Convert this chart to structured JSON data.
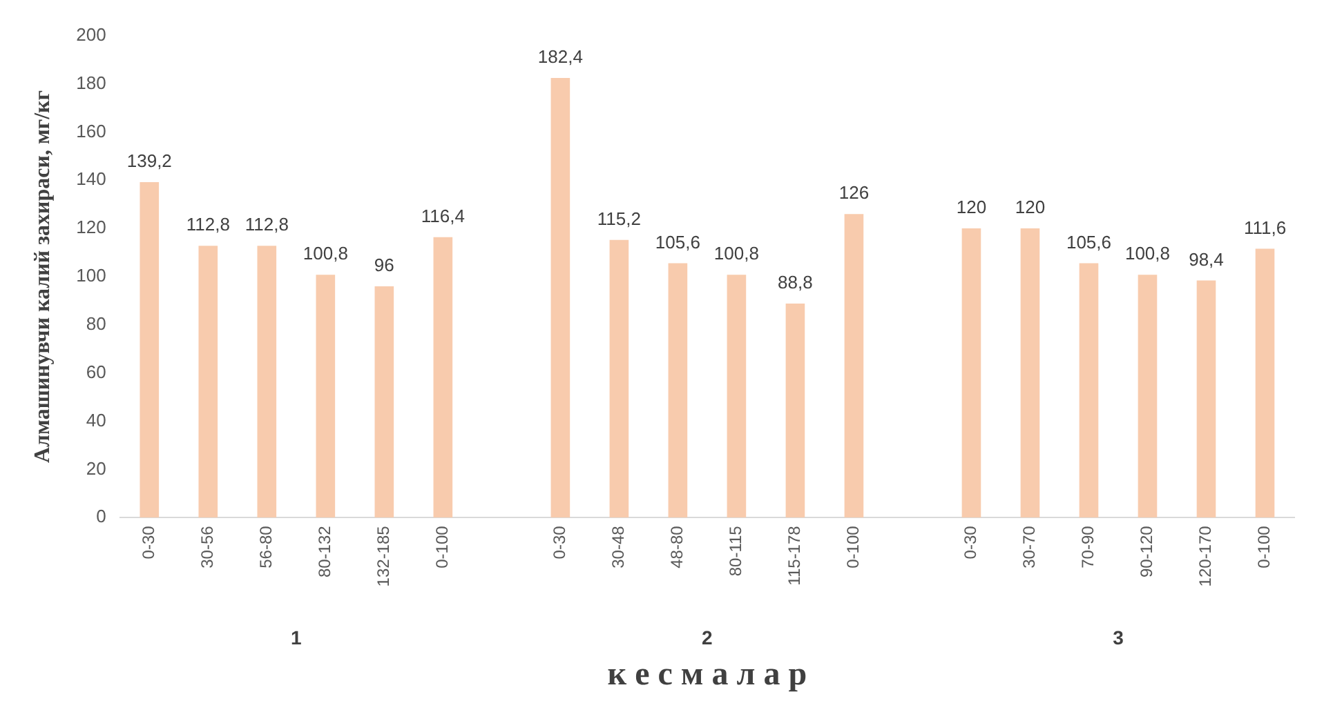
{
  "chart_data": {
    "type": "bar",
    "xlabel": "к е с м а л а р",
    "ylabel": "Алмашинувчи калий захираси, мг/кг",
    "categories": [
      "0-30",
      "30-56",
      "56-80",
      "80-132",
      "132-185",
      "0-100",
      null,
      "0-30",
      "30-48",
      "48-80",
      "80-115",
      "115-178",
      "0-100",
      null,
      "0-30",
      "30-70",
      "70-90",
      "90-120",
      "120-170",
      "0-100"
    ],
    "values": [
      139.2,
      112.8,
      112.8,
      100.8,
      96,
      116.4,
      null,
      182.4,
      115.2,
      105.6,
      100.8,
      88.8,
      126,
      null,
      120,
      120,
      105.6,
      100.8,
      98.4,
      111.6
    ],
    "value_labels": [
      "139,2",
      "112,8",
      "112,8",
      "100,8",
      "96",
      "116,4",
      null,
      "182,4",
      "115,2",
      "105,6",
      "100,8",
      "88,8",
      "126",
      null,
      "120",
      "120",
      "105,6",
      "100,8",
      "98,4",
      "111,6"
    ],
    "color": "#f8cbad",
    "ylim": [
      0,
      200
    ],
    "yticks": [
      0,
      20,
      40,
      60,
      80,
      100,
      120,
      140,
      160,
      180,
      200
    ],
    "annotations": [
      "1",
      "2",
      "3"
    ],
    "grid": false,
    "legend": false
  }
}
